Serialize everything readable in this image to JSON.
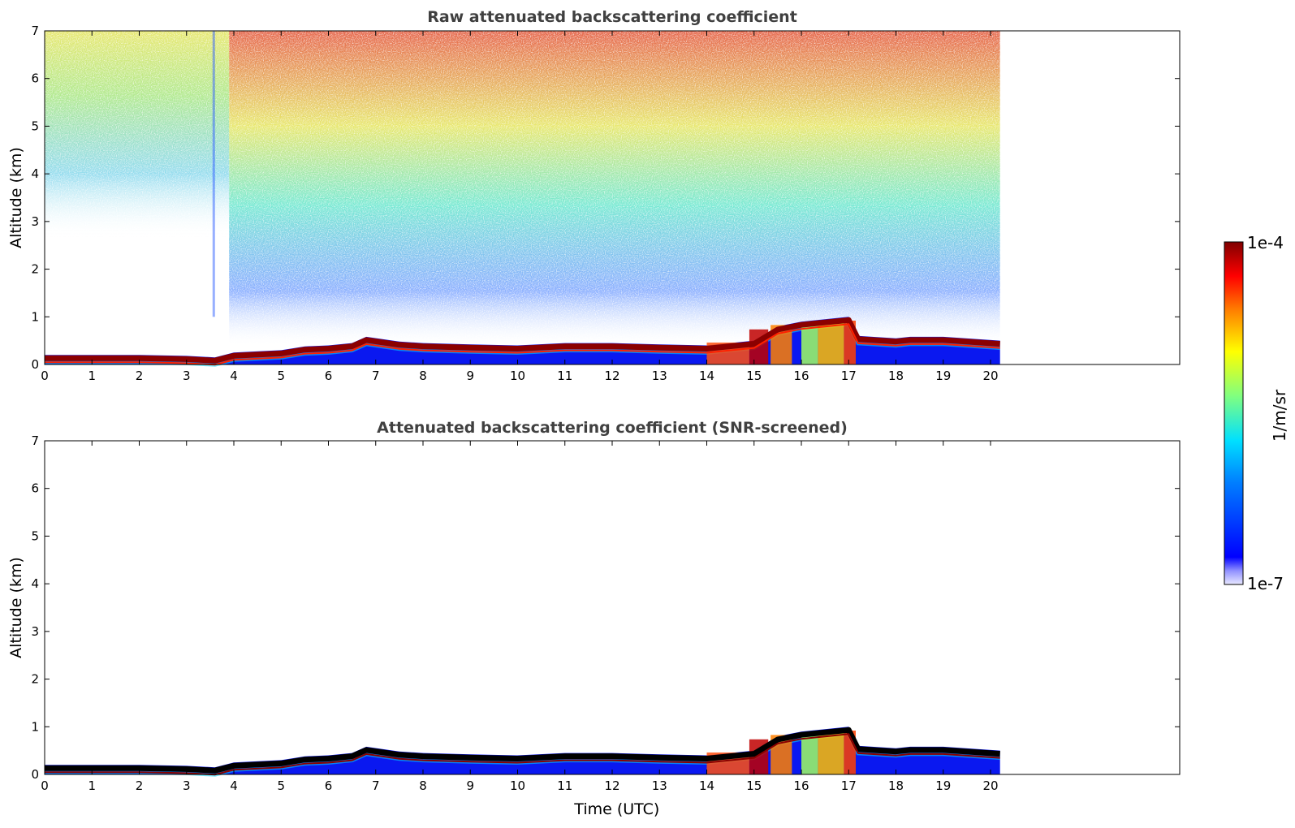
{
  "chart_data": [
    {
      "type": "heatmap",
      "title": "Raw attenuated backscattering coefficient",
      "xlabel": "",
      "ylabel": "Altitude (km)",
      "xlim": [
        0,
        24
      ],
      "ylim": [
        0,
        7
      ],
      "x_ticks": [
        "0",
        "1",
        "2",
        "3",
        "4",
        "5",
        "6",
        "7",
        "8",
        "9",
        "10",
        "11",
        "12",
        "13",
        "14",
        "15",
        "16",
        "17",
        "18",
        "19",
        "20"
      ],
      "y_ticks": [
        "0",
        "1",
        "2",
        "3",
        "4",
        "5",
        "6",
        "7"
      ],
      "data_extent_time_utc": 20.2,
      "layer_top_km": [
        [
          0,
          0.2
        ],
        [
          1,
          0.2
        ],
        [
          2,
          0.2
        ],
        [
          3,
          0.18
        ],
        [
          3.6,
          0.15
        ],
        [
          4,
          0.25
        ],
        [
          5,
          0.3
        ],
        [
          5.5,
          0.38
        ],
        [
          6,
          0.4
        ],
        [
          6.5,
          0.45
        ],
        [
          6.8,
          0.58
        ],
        [
          7.5,
          0.48
        ],
        [
          8,
          0.45
        ],
        [
          9,
          0.42
        ],
        [
          10,
          0.4
        ],
        [
          11,
          0.45
        ],
        [
          12,
          0.45
        ],
        [
          13,
          0.42
        ],
        [
          14,
          0.4
        ],
        [
          15,
          0.5
        ],
        [
          15.5,
          0.8
        ],
        [
          16,
          0.9
        ],
        [
          16.5,
          0.95
        ],
        [
          17,
          1.0
        ],
        [
          17.2,
          0.6
        ],
        [
          18,
          0.55
        ],
        [
          18.3,
          0.58
        ],
        [
          19,
          0.58
        ],
        [
          20.2,
          0.5
        ]
      ],
      "notes_scale": "log"
    },
    {
      "type": "heatmap",
      "title": "Attenuated backscattering coefficient (SNR-screened)",
      "xlabel": "Time (UTC)",
      "ylabel": "Altitude (km)",
      "xlim": [
        0,
        24
      ],
      "ylim": [
        0,
        7
      ],
      "x_ticks": [
        "0",
        "1",
        "2",
        "3",
        "4",
        "5",
        "6",
        "7",
        "8",
        "9",
        "10",
        "11",
        "12",
        "13",
        "14",
        "15",
        "16",
        "17",
        "18",
        "19",
        "20"
      ],
      "y_ticks": [
        "0",
        "1",
        "2",
        "3",
        "4",
        "5",
        "6",
        "7"
      ],
      "data_extent_time_utc": 20.2,
      "layer_top_km": [
        [
          0,
          0.2
        ],
        [
          1,
          0.2
        ],
        [
          2,
          0.2
        ],
        [
          3,
          0.18
        ],
        [
          3.6,
          0.15
        ],
        [
          4,
          0.25
        ],
        [
          5,
          0.3
        ],
        [
          5.5,
          0.38
        ],
        [
          6,
          0.4
        ],
        [
          6.5,
          0.45
        ],
        [
          6.8,
          0.58
        ],
        [
          7.5,
          0.48
        ],
        [
          8,
          0.45
        ],
        [
          9,
          0.42
        ],
        [
          10,
          0.4
        ],
        [
          11,
          0.45
        ],
        [
          12,
          0.45
        ],
        [
          13,
          0.42
        ],
        [
          14,
          0.4
        ],
        [
          15,
          0.5
        ],
        [
          15.5,
          0.8
        ],
        [
          16,
          0.9
        ],
        [
          16.5,
          0.95
        ],
        [
          17,
          1.0
        ],
        [
          17.2,
          0.6
        ],
        [
          18,
          0.55
        ],
        [
          18.3,
          0.58
        ],
        [
          19,
          0.58
        ],
        [
          20.2,
          0.5
        ]
      ]
    }
  ],
  "colorbar": {
    "max_label": "1e-4",
    "min_label": "1e-7",
    "unit_label": "1/m/sr",
    "scale": "log",
    "colormap": "jet",
    "stops": [
      "#00007f",
      "#0000ff",
      "#007fff",
      "#00ffff",
      "#7fff7f",
      "#ffff00",
      "#ff7f00",
      "#ff0000",
      "#7f0000"
    ]
  }
}
